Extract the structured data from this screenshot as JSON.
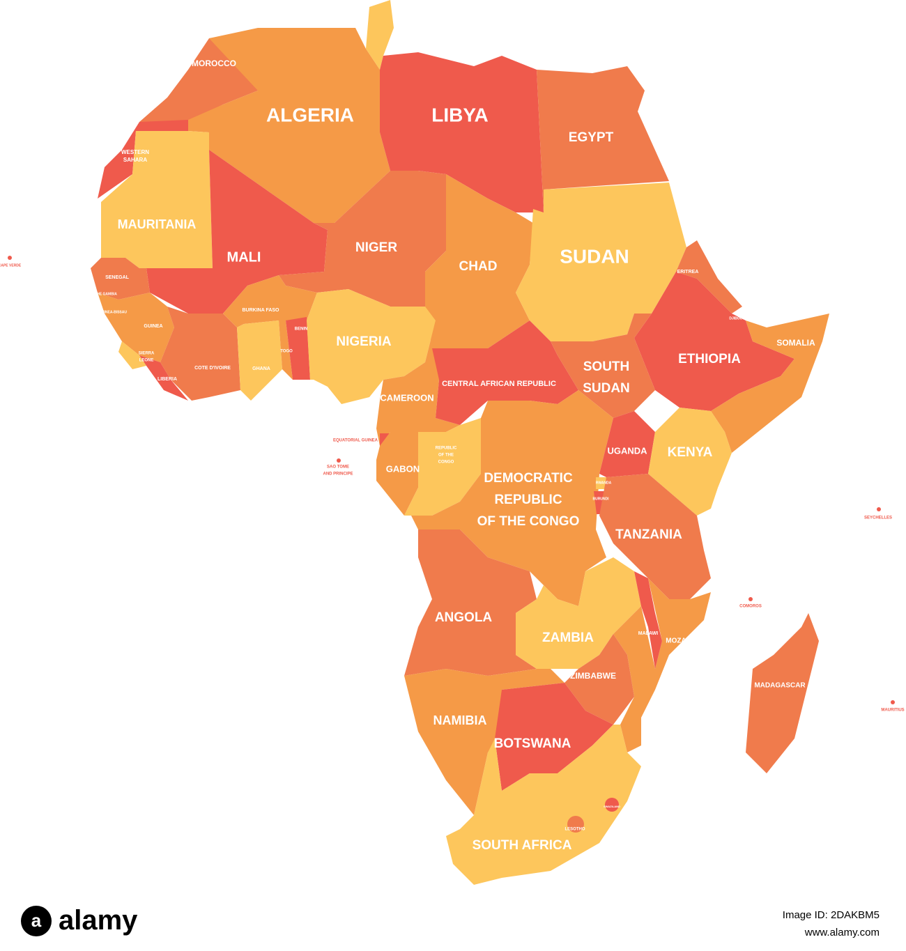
{
  "map": {
    "labels": [
      {
        "lines": [
          "MOROCCO"
        ]
      },
      {
        "lines": [
          "ALGERIA"
        ]
      },
      {
        "lines": [
          "LIBYA"
        ]
      },
      {
        "lines": [
          "EGYPT"
        ]
      },
      {
        "lines": [
          "WESTERN",
          "SAHARA"
        ]
      },
      {
        "lines": [
          "MAURITANIA"
        ]
      },
      {
        "lines": [
          "MALI"
        ]
      },
      {
        "lines": [
          "NIGER"
        ]
      },
      {
        "lines": [
          "CHAD"
        ]
      },
      {
        "lines": [
          "SUDAN"
        ]
      },
      {
        "lines": [
          "ERITREA"
        ]
      },
      {
        "lines": [
          "DJIBOUTI"
        ]
      },
      {
        "lines": [
          "SENEGAL"
        ]
      },
      {
        "lines": [
          "THE GAMBIA"
        ]
      },
      {
        "lines": [
          "GUINEA-BISSAU"
        ]
      },
      {
        "lines": [
          "GUINEA"
        ]
      },
      {
        "lines": [
          "SIERRA",
          "LEONE"
        ]
      },
      {
        "lines": [
          "LIBERIA"
        ]
      },
      {
        "lines": [
          "COTE D'IVOIRE"
        ]
      },
      {
        "lines": [
          "BURKINA FASO"
        ]
      },
      {
        "lines": [
          "GHANA"
        ]
      },
      {
        "lines": [
          "TOGO"
        ]
      },
      {
        "lines": [
          "BENIN"
        ]
      },
      {
        "lines": [
          "NIGERIA"
        ]
      },
      {
        "lines": [
          "CAMEROON"
        ]
      },
      {
        "lines": [
          "CENTRAL AFRICAN REPUBLIC"
        ]
      },
      {
        "lines": [
          "SOUTH",
          "SUDAN"
        ]
      },
      {
        "lines": [
          "ETHIOPIA"
        ]
      },
      {
        "lines": [
          "SOMALIA"
        ]
      },
      {
        "lines": [
          "EQUATORIAL GUINEA"
        ]
      },
      {
        "lines": [
          "SAO TOME",
          "AND PRINCIPE"
        ]
      },
      {
        "lines": [
          "GABON"
        ]
      },
      {
        "lines": [
          "REPUBLIC",
          "OF THE",
          "CONGO"
        ]
      },
      {
        "lines": [
          "UGANDA"
        ]
      },
      {
        "lines": [
          "KENYA"
        ]
      },
      {
        "lines": [
          "RWANDA"
        ]
      },
      {
        "lines": [
          "BURUNDI"
        ]
      },
      {
        "lines": [
          "DEMOCRATIC",
          "REPUBLIC",
          "OF THE CONGO"
        ]
      },
      {
        "lines": [
          "TANZANIA"
        ]
      },
      {
        "lines": [
          "SEYCHELLES"
        ]
      },
      {
        "lines": [
          "COMOROS"
        ]
      },
      {
        "lines": [
          "ANGOLA"
        ]
      },
      {
        "lines": [
          "ZAMBIA"
        ]
      },
      {
        "lines": [
          "MALAWI"
        ]
      },
      {
        "lines": [
          "MOZAMBIQUE"
        ]
      },
      {
        "lines": [
          "MADAGASCAR"
        ]
      },
      {
        "lines": [
          "MAURITIUS"
        ]
      },
      {
        "lines": [
          "ZIMBABWE"
        ]
      },
      {
        "lines": [
          "NAMIBIA"
        ]
      },
      {
        "lines": [
          "BOTSWANA"
        ]
      },
      {
        "lines": [
          "SWAZILAND"
        ]
      },
      {
        "lines": [
          "LESOTHO"
        ]
      },
      {
        "lines": [
          "SOUTH AFRICA"
        ]
      },
      {
        "lines": [
          "CAPE VERDE"
        ]
      }
    ]
  },
  "footer": {
    "logo": "alamy",
    "image_id": "Image ID: 2DAKBM5",
    "url": "www.alamy.com"
  }
}
